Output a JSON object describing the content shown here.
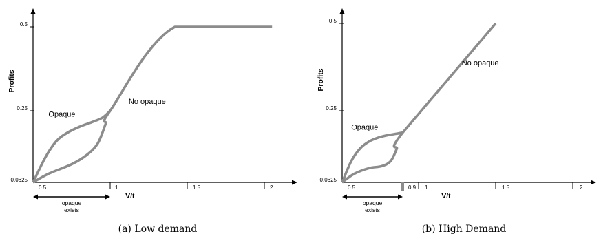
{
  "colors": {
    "series": "#8c8c8c",
    "axis": "#000000"
  },
  "chart_data": [
    {
      "type": "line",
      "caption": "(a) Low demand",
      "xlabel": "V/t",
      "ylabel": "Profits",
      "x_ticks": [
        "0.5",
        "1",
        "1.5",
        "2"
      ],
      "y_ticks": [
        "0.0625",
        "0.25",
        "0.5"
      ],
      "series": [
        {
          "name": "Opaque",
          "x": [
            0.5,
            0.58,
            0.65,
            0.72,
            0.8,
            0.88,
            0.95,
            1.0
          ],
          "y": [
            0.0625,
            0.128,
            0.17,
            0.192,
            0.208,
            0.22,
            0.232,
            0.25
          ]
        },
        {
          "name": "No opaque",
          "x": [
            0.5,
            0.6,
            0.75,
            0.85,
            0.92,
            0.97,
            1.0,
            1.42,
            2.05
          ],
          "y": [
            0.0625,
            0.085,
            0.11,
            0.135,
            0.165,
            0.215,
            0.25,
            0.5,
            0.5
          ]
        }
      ],
      "annotations": [
        {
          "label": "Opaque",
          "x": 0.6,
          "y": 0.235
        },
        {
          "label": "No opaque",
          "x": 1.12,
          "y": 0.27
        }
      ],
      "bracket": {
        "from": 0.5,
        "to": 1.0,
        "label_line1": "opaque",
        "label_line2": "exists"
      }
    },
    {
      "type": "line",
      "caption": "(b) High Demand",
      "xlabel": "V/t",
      "ylabel": "Profits",
      "x_ticks": [
        "0.5",
        "0.9",
        "1",
        "1.5",
        "2"
      ],
      "y_ticks": [
        "0.0625",
        "0.25",
        "0.5"
      ],
      "series": [
        {
          "name": "Opaque",
          "x": [
            0.5,
            0.56,
            0.62,
            0.68,
            0.74,
            0.8,
            0.86,
            0.9
          ],
          "y": [
            0.0625,
            0.118,
            0.152,
            0.17,
            0.18,
            0.186,
            0.19,
            0.193
          ]
        },
        {
          "name": "No opaque",
          "x": [
            0.5,
            0.58,
            0.68,
            0.76,
            0.82,
            0.86,
            0.9,
            1.5
          ],
          "y": [
            0.0625,
            0.085,
            0.1,
            0.105,
            0.118,
            0.15,
            0.193,
            0.5
          ]
        }
      ],
      "annotations": [
        {
          "label": "Opaque",
          "x": 0.56,
          "y": 0.2
        },
        {
          "label": "No opaque",
          "x": 1.28,
          "y": 0.38
        }
      ],
      "bracket": {
        "from": 0.5,
        "to": 0.9,
        "label_line1": "opaque",
        "label_line2": "exists"
      }
    }
  ]
}
